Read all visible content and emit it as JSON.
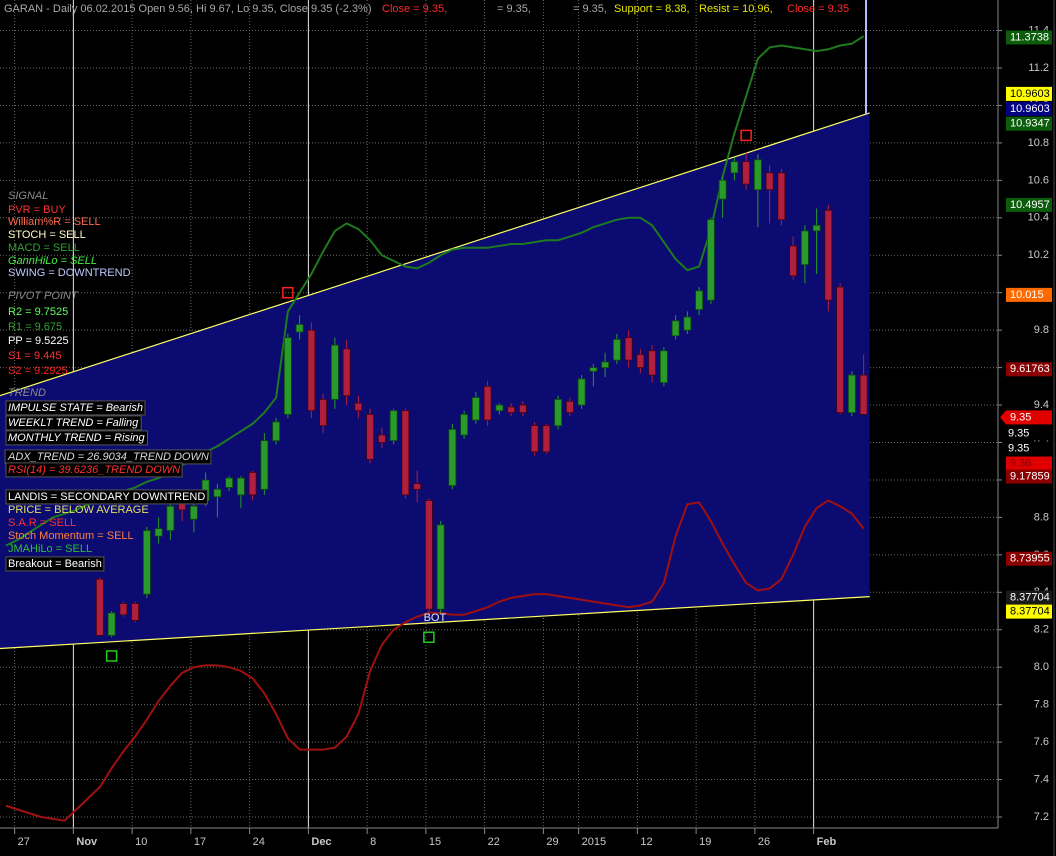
{
  "chart_data": {
    "type": "candlestick",
    "header": [
      {
        "text": "GARAN - Daily 06.02.2015 Open 9.56, Hi 9.67, Lo 9.35, Close 9.35 (-2.3%)",
        "color": "#a8a8a8"
      },
      {
        "text": "Close = 9.35,",
        "color": "#ff2a2a"
      },
      {
        "text": "= 9.35,",
        "color": "#a8a8a8"
      },
      {
        "text": "= 9.35,",
        "color": "#a8a8a8"
      },
      {
        "text": "Support = 8.38,",
        "color": "#e6e600"
      },
      {
        "text": "Resist = 10.96,",
        "color": "#e6e600"
      },
      {
        "text": "Close = 9.35",
        "color": "#ff2a2a"
      }
    ],
    "categories": [
      null,
      "27",
      null,
      null,
      null,
      null,
      "Nov",
      null,
      null,
      null,
      null,
      "10",
      null,
      null,
      null,
      null,
      "17",
      null,
      null,
      null,
      null,
      "24",
      null,
      null,
      null,
      null,
      "Dec",
      null,
      null,
      null,
      null,
      "8",
      null,
      null,
      null,
      null,
      "15",
      null,
      null,
      null,
      null,
      "22",
      null,
      null,
      null,
      null,
      "29",
      null,
      null,
      "2015",
      null,
      null,
      null,
      null,
      "12",
      null,
      null,
      null,
      null,
      "19",
      null,
      null,
      null,
      null,
      "26",
      null,
      null,
      null,
      null,
      "Feb",
      null,
      null,
      null,
      null
    ],
    "ohlc": {
      "up_color": "#2a9a2a",
      "down_color": "#b0203e",
      "open": [
        null,
        null,
        null,
        null,
        null,
        null,
        null,
        null,
        8.47,
        8.17,
        8.34,
        8.34,
        8.39,
        8.7,
        8.73,
        8.88,
        8.79,
        8.89,
        8.91,
        8.96,
        8.92,
        9.04,
        8.95,
        9.21,
        9.35,
        9.79,
        9.8,
        9.43,
        9.43,
        9.7,
        9.41,
        9.35,
        9.24,
        9.21,
        9.37,
        8.98,
        8.89,
        8.31,
        8.97,
        9.24,
        9.32,
        9.5,
        9.37,
        9.39,
        9.4,
        9.29,
        9.29,
        9.29,
        9.42,
        9.4,
        9.58,
        9.6,
        9.64,
        9.76,
        9.67,
        9.69,
        9.52,
        9.77,
        9.8,
        9.91,
        9.96,
        10.5,
        10.64,
        10.7,
        10.55,
        10.64,
        10.64,
        10.25,
        10.15,
        10.33,
        10.44,
        10.03,
        9.36,
        9.56
      ],
      "high": [
        null,
        null,
        null,
        null,
        null,
        null,
        null,
        null,
        8.48,
        8.3,
        8.35,
        8.35,
        8.75,
        8.8,
        8.88,
        8.92,
        8.9,
        9.04,
        8.98,
        9.02,
        9.02,
        9.05,
        9.25,
        9.33,
        9.78,
        9.88,
        9.84,
        9.46,
        9.76,
        9.75,
        9.45,
        9.38,
        9.28,
        9.38,
        9.38,
        9.05,
        8.9,
        8.78,
        9.3,
        9.37,
        9.47,
        9.53,
        9.41,
        9.41,
        9.42,
        9.31,
        9.3,
        9.45,
        9.44,
        9.56,
        9.62,
        9.68,
        9.78,
        9.8,
        9.7,
        9.72,
        9.71,
        9.88,
        9.9,
        10.03,
        10.4,
        10.62,
        10.72,
        10.75,
        10.74,
        10.68,
        10.66,
        10.3,
        10.36,
        10.45,
        10.47,
        10.05,
        9.58,
        9.67
      ],
      "low": [
        null,
        null,
        null,
        null,
        null,
        null,
        null,
        null,
        8.17,
        8.16,
        8.27,
        8.24,
        8.37,
        8.66,
        8.68,
        8.78,
        8.72,
        8.86,
        8.8,
        8.94,
        8.85,
        8.89,
        8.92,
        9.19,
        9.33,
        9.75,
        9.33,
        9.25,
        9.38,
        9.4,
        9.33,
        9.09,
        9.17,
        9.19,
        8.9,
        8.88,
        8.28,
        8.29,
        8.95,
        9.22,
        9.3,
        9.29,
        9.35,
        9.34,
        9.34,
        9.13,
        9.14,
        9.27,
        9.34,
        9.38,
        9.5,
        9.55,
        9.62,
        9.6,
        9.57,
        9.52,
        9.5,
        9.75,
        9.78,
        9.88,
        9.94,
        10.4,
        10.6,
        10.55,
        10.35,
        10.37,
        10.36,
        10.07,
        10.05,
        10.1,
        9.9,
        9.35,
        9.34,
        9.35
      ],
      "close": [
        null,
        null,
        null,
        null,
        null,
        null,
        null,
        null,
        8.17,
        8.29,
        8.28,
        8.25,
        8.73,
        8.74,
        8.86,
        8.84,
        8.86,
        9.0,
        8.95,
        9.01,
        9.01,
        8.92,
        9.21,
        9.31,
        9.76,
        9.83,
        9.37,
        9.29,
        9.72,
        9.45,
        9.37,
        9.11,
        9.2,
        9.37,
        8.92,
        8.95,
        8.31,
        8.76,
        9.27,
        9.35,
        9.44,
        9.32,
        9.4,
        9.36,
        9.36,
        9.15,
        9.15,
        9.43,
        9.36,
        9.54,
        9.6,
        9.63,
        9.75,
        9.64,
        9.6,
        9.56,
        9.69,
        9.85,
        9.87,
        10.01,
        10.39,
        10.6,
        10.7,
        10.58,
        10.71,
        10.55,
        10.39,
        10.09,
        10.33,
        10.36,
        9.96,
        9.36,
        9.56,
        9.35
      ]
    },
    "lines": [
      {
        "color": "#1e7a1e",
        "values": [
          8.65,
          8.68,
          8.72,
          8.76,
          8.8,
          8.82,
          8.84,
          8.87,
          8.89,
          8.92,
          8.94,
          8.96,
          8.99,
          9.01,
          9.04,
          9.08,
          9.11,
          9.15,
          9.18,
          9.22,
          9.26,
          9.3,
          9.36,
          9.44,
          9.9,
          10.0,
          10.1,
          10.22,
          10.33,
          10.37,
          10.34,
          10.28,
          10.2,
          10.17,
          10.14,
          10.13,
          10.16,
          10.2,
          10.23,
          10.24,
          10.24,
          10.24,
          10.25,
          10.26,
          10.26,
          10.27,
          10.28,
          10.28,
          10.3,
          10.32,
          10.35,
          10.37,
          10.39,
          10.4,
          10.4,
          10.36,
          10.27,
          10.18,
          10.12,
          10.14,
          10.34,
          10.62,
          10.85,
          11.05,
          11.25,
          11.31,
          11.32,
          11.31,
          11.3,
          11.29,
          11.3,
          11.32,
          11.33,
          11.37
        ]
      },
      {
        "color": "#a01010",
        "values": [
          7.26,
          7.24,
          7.22,
          7.2,
          7.19,
          7.18,
          7.24,
          7.3,
          7.36,
          7.46,
          7.55,
          7.63,
          7.72,
          7.82,
          7.9,
          7.97,
          8.0,
          8.01,
          8.01,
          8.0,
          7.98,
          7.94,
          7.86,
          7.75,
          7.62,
          7.56,
          7.56,
          7.56,
          7.57,
          7.63,
          7.75,
          7.98,
          8.12,
          8.2,
          8.24,
          8.27,
          8.29,
          8.29,
          8.28,
          8.28,
          8.3,
          8.32,
          8.35,
          8.37,
          8.38,
          8.39,
          8.39,
          8.38,
          8.37,
          8.36,
          8.35,
          8.34,
          8.33,
          8.32,
          8.33,
          8.35,
          8.45,
          8.7,
          8.87,
          8.88,
          8.78,
          8.66,
          8.55,
          8.45,
          8.41,
          8.42,
          8.47,
          8.6,
          8.75,
          8.85,
          8.89,
          8.86,
          8.82,
          8.74
        ]
      }
    ],
    "channel": {
      "line_color": "#ffff66",
      "fill": "#0b0b72",
      "upper": [
        9.45,
        10.96
      ],
      "lower": [
        8.1,
        8.377
      ]
    },
    "signals": [
      {
        "at": 9,
        "value": 8.06,
        "color": "#22cc22"
      },
      {
        "at": 36,
        "value": 8.16,
        "color": "#22cc22",
        "label": "BOT"
      },
      {
        "at": 24,
        "value": 10.0,
        "color": "#ff2020"
      },
      {
        "at": 63,
        "value": 10.84,
        "color": "#ff2020"
      }
    ],
    "ylim": [
      7.1412,
      11.5632
    ],
    "yticks": [
      7.2,
      7.4,
      7.6,
      7.8,
      {
        "value": 8,
        "label": "8.0"
      },
      8.2,
      8.4,
      8.6,
      8.8,
      {
        "value": 9,
        "label": "9.0"
      },
      9.2,
      9.4,
      9.6,
      9.8,
      {
        "value": 10,
        "label": "10.0"
      },
      10.2,
      10.4,
      10.6,
      10.8,
      {
        "value": 11,
        "label": "11.0"
      },
      11.2,
      11.4
    ],
    "grid": true,
    "price_labels": [
      {
        "value": 11.3738,
        "bg": "#0b5c0b",
        "fg": "#ffffff"
      },
      {
        "value": 10.9603,
        "bg": "#ffff00",
        "fg": "#000000"
      },
      {
        "value": 10.9603,
        "bg": "#000080",
        "fg": "#ffffff"
      },
      {
        "value": 10.9347,
        "bg": "#0b5c0b",
        "fg": "#ffffff"
      },
      {
        "value": 10.4957,
        "bg": "#0b5c0b",
        "fg": "#ffffff"
      },
      {
        "value": 10.015,
        "bg": "#ff6a00",
        "fg": "#ffffff"
      },
      {
        "value": 9.61763,
        "bg": "#8b0000",
        "fg": "#ffffff"
      },
      {
        "value": 9.35,
        "bg": "#e00000",
        "fg": "#ffffff"
      },
      {
        "value": 9.35,
        "bg": "#000000",
        "fg": "#ffffff"
      },
      {
        "value": 9.35,
        "bg": "#000000",
        "fg": "#ffffff"
      },
      {
        "value": 9.36,
        "bg": "#e00000",
        "fg": "#8b0000"
      },
      {
        "value": 9.17859,
        "bg": "#8b0000",
        "fg": "#ffffff"
      },
      {
        "value": 8.73955,
        "bg": "#8b0000",
        "fg": "#ffffff"
      },
      {
        "value": 8.37704,
        "bg": "#1a1a1a",
        "fg": "#ffffff"
      },
      {
        "value": 8.37704,
        "bg": "#ffff00",
        "fg": "#000000"
      }
    ],
    "indicators": [
      {
        "text": "SIGNAL",
        "color": "#8c8c8c",
        "italic": true
      },
      {
        "text": "PVR = BUY",
        "color": "#ff3030"
      },
      {
        "text": "William%R = SELL",
        "color": "#ff6a4a"
      },
      {
        "text": "STOCH = SELL",
        "color": "#ffffc8"
      },
      {
        "text": "MACD = SELL",
        "color": "#30a030"
      },
      {
        "text": "GannHiLo = SELL",
        "color": "#44ee44",
        "italic": true
      },
      {
        "text": "SWING = DOWNTREND",
        "color": "#c0c8ff"
      },
      {
        "text": "PIVOT POINT",
        "color": "#8c8c8c",
        "italic": true
      },
      {
        "text": "R2 = 9.7525",
        "color": "#60ff60"
      },
      {
        "text": "R1 = 9.675",
        "color": "#30a030"
      },
      {
        "text": "PP = 9.5225",
        "color": "#ffffff"
      },
      {
        "text": "S1 = 9.445",
        "color": "#ff3030"
      },
      {
        "text": "S2 = 9.2925",
        "color": "#ff2020"
      },
      {
        "text": "TREND",
        "color": "#8c8c8c",
        "italic": true
      },
      {
        "text": "IMPULSE STATE = Bearish",
        "color": "#ffffff",
        "italic": true,
        "boxed": true
      },
      {
        "text": "WEEKLT TREND = Falling",
        "color": "#ffffff",
        "italic": true,
        "boxed": true
      },
      {
        "text": "MONTHLY TREND = Rising",
        "color": "#ffffff",
        "italic": true,
        "boxed": true
      },
      {
        "text": "ADX_TREND = 26.9034_TREND DOWN",
        "color": "#d8d8d8",
        "italic": true,
        "boxed": true
      },
      {
        "text": "RSI(14) = 39.6236_TREND DOWN",
        "color": "#ff3030",
        "italic": true,
        "boxed": true
      },
      {
        "text": "LANDIS = SECONDARY DOWNTREND",
        "color": "#ffffff",
        "boxed": true
      },
      {
        "text": "PRICE = BELOW AVERAGE",
        "color": "#e0e060"
      },
      {
        "text": "S.A.R = SELL",
        "color": "#ff3030"
      },
      {
        "text": "Stoch Momentum = SELL",
        "color": "#ff8040"
      },
      {
        "text": "JMAHiLo = SELL",
        "color": "#30c030"
      },
      {
        "text": "Breakout = Bearish",
        "color": "#ffffff",
        "boxed": true
      }
    ]
  }
}
